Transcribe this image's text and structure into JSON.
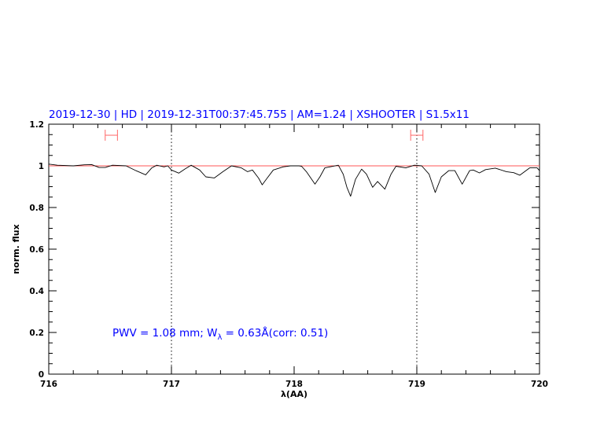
{
  "chart_data": {
    "type": "line",
    "title": "2019-12-30 | HD | 2019-12-31T00:37:45.755 | AM=1.24 | XSHOOTER | S1.5x11",
    "xlabel": "λ(AA)",
    "ylabel": "norm. flux",
    "xlim": [
      716,
      720
    ],
    "ylim": [
      0,
      1.2
    ],
    "xticks": [
      716,
      717,
      718,
      719,
      720
    ],
    "xtick_labels": [
      "716",
      "717",
      "718",
      "719",
      "720"
    ],
    "yticks": [
      0,
      0.2,
      0.4,
      0.6,
      0.8,
      1,
      1.2
    ],
    "ytick_labels": [
      "0",
      "0.2",
      "0.4",
      "0.6",
      "0.8",
      "1",
      "1.2"
    ],
    "grid": false,
    "reference_line": {
      "y": 1.0,
      "color": "#ff5555"
    },
    "vertical_dotted_lines": [
      717,
      719
    ],
    "error_bars": [
      {
        "x": 716.51,
        "xmin": 716.46,
        "xmax": 716.56,
        "y": 1.147,
        "color": "#ff6666"
      },
      {
        "x": 719.0,
        "xmin": 718.95,
        "xmax": 719.05,
        "y": 1.147,
        "color": "#ff6666"
      }
    ],
    "annotation": {
      "text_main": "PWV = 1.08 mm; W",
      "subscript": "λ",
      "text_tail": " = 0.63Å(corr: 0.51)",
      "color": "#0000ff"
    },
    "series": [
      {
        "color": "#000000",
        "x": [
          716.0,
          716.008,
          716.07,
          716.2,
          716.29,
          716.35,
          716.41,
          716.46,
          716.52,
          716.63,
          716.71,
          716.79,
          716.84,
          716.88,
          716.94,
          716.97,
          717.0,
          717.06,
          717.11,
          717.16,
          717.23,
          717.28,
          717.35,
          717.42,
          717.49,
          717.57,
          717.62,
          717.66,
          717.71,
          717.74,
          717.78,
          717.83,
          717.91,
          717.97,
          718.04,
          718.06,
          718.1,
          718.17,
          718.21,
          718.25,
          718.36,
          718.4,
          718.43,
          718.46,
          718.5,
          718.55,
          718.59,
          718.64,
          718.68,
          718.74,
          718.79,
          718.83,
          718.91,
          718.98,
          719.04,
          719.1,
          719.15,
          719.2,
          719.26,
          719.31,
          719.37,
          719.43,
          719.46,
          719.51,
          719.56,
          719.64,
          719.73,
          719.79,
          719.84,
          719.92,
          719.98,
          720.0
        ],
        "y": [
          1.008,
          1.008,
          1.003,
          1.0,
          1.005,
          1.006,
          0.992,
          0.992,
          1.003,
          1.0,
          0.977,
          0.957,
          0.99,
          1.003,
          0.995,
          1.0,
          0.98,
          0.965,
          0.985,
          1.003,
          0.98,
          0.947,
          0.942,
          0.972,
          1.0,
          0.99,
          0.972,
          0.98,
          0.941,
          0.909,
          0.941,
          0.98,
          0.995,
          1.0,
          1.0,
          0.998,
          0.972,
          0.912,
          0.947,
          0.99,
          1.003,
          0.96,
          0.897,
          0.854,
          0.935,
          0.984,
          0.96,
          0.897,
          0.925,
          0.888,
          0.96,
          0.998,
          0.99,
          1.003,
          1.0,
          0.96,
          0.872,
          0.947,
          0.977,
          0.977,
          0.912,
          0.977,
          0.98,
          0.966,
          0.982,
          0.989,
          0.972,
          0.967,
          0.955,
          0.99,
          0.99,
          0.977
        ]
      }
    ]
  }
}
